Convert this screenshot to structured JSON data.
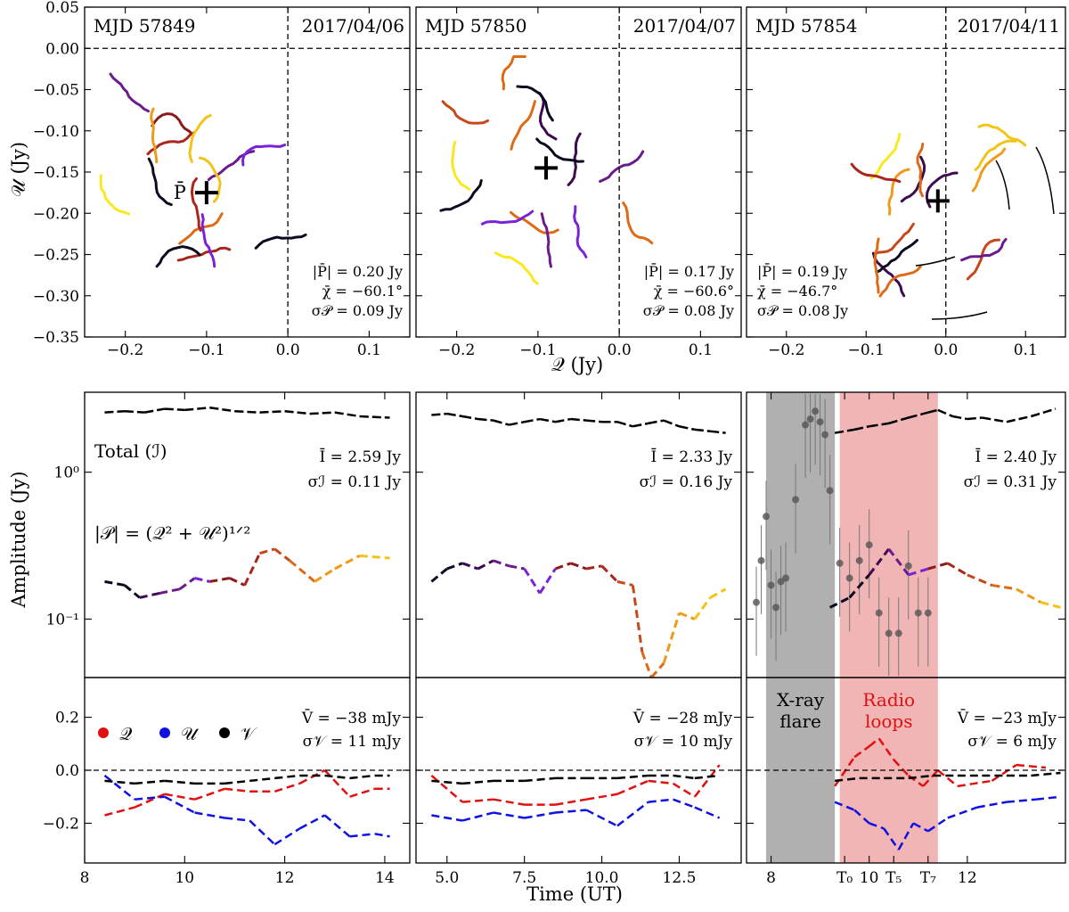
{
  "chart_data": {
    "type": "scatter",
    "colors": {
      "Q": "#e01010",
      "U": "#1010e0",
      "V": "#000000",
      "band_xray": "#b0b0b0",
      "band_radio": "#f2b5b5",
      "radio_text": "#dd1111",
      "track_palette": [
        "#0b0b20",
        "#3d0a4e",
        "#6a1a8c",
        "#7a22d8",
        "#8b1a1a",
        "#a8261c",
        "#c7471a",
        "#dd6a14",
        "#ee9a1a",
        "#f4c318",
        "#fbe81c"
      ]
    },
    "top_panels": [
      {
        "mjd": "MJD 57849",
        "date": "2017/04/06",
        "mean_p_label": "̅P",
        "mean_p": {
          "x": -0.1,
          "y": -0.175
        },
        "stats": [
          "|P̄| = 0.20 Jy",
          "χ̄ = −60.1°",
          "σ𝒫 = 0.09 Jy"
        ],
        "xlim": [
          -0.25,
          0.15
        ],
        "ylim": [
          -0.35,
          0.05
        ],
        "xticks": [
          "−0.2",
          "−0.1",
          "0.0",
          "0.1"
        ]
      },
      {
        "mjd": "MJD 57850",
        "date": "2017/04/07",
        "mean_p": {
          "x": -0.09,
          "y": -0.145
        },
        "stats": [
          "|P̄| = 0.17 Jy",
          "χ̄ = −60.6°",
          "σ𝒫 = 0.08 Jy"
        ],
        "xlim": [
          -0.25,
          0.15
        ],
        "ylim": [
          -0.35,
          0.05
        ],
        "xticks": [
          "−0.2",
          "−0.1",
          "0.0",
          "0.1"
        ]
      },
      {
        "mjd": "MJD 57854",
        "date": "2017/04/11",
        "mean_p": {
          "x": -0.01,
          "y": -0.185
        },
        "stats": [
          "|P̄| = 0.19 Jy",
          "χ̄ = −46.7°",
          "σ𝒫 = 0.08 Jy"
        ],
        "xlim": [
          -0.25,
          0.15
        ],
        "ylim": [
          -0.35,
          0.05
        ],
        "xticks": [
          "−0.2",
          "−0.1",
          "0.0",
          "0.1"
        ]
      }
    ],
    "top_yticks": [
      "0.05",
      "0.00",
      "−0.05",
      "−0.10",
      "−0.15",
      "−0.20",
      "−0.25",
      "−0.30",
      "−0.35"
    ],
    "top_ylabel": "𝒰 (Jy)",
    "top_xlabel": "𝒬 (Jy)",
    "mid_ylabel": "Amplitude (Jy)",
    "mid_yticks": [
      "10⁰",
      "10⁻¹"
    ],
    "mid_series_labels": [
      "Total (ℐ)",
      "|𝒫| = (𝒬² + 𝒰²)¹ᐟ²"
    ],
    "mid_stats": [
      [
        "Ī = 2.59 Jy",
        "σℐ = 0.11 Jy"
      ],
      [
        "Ī = 2.33 Jy",
        "σℐ = 0.16 Jy"
      ],
      [
        "Ī = 2.40 Jy",
        "σℐ = 0.31 Jy"
      ]
    ],
    "bottom_stats": [
      [
        "V̄ = −38 mJy",
        "σ𝒱 = 11 mJy"
      ],
      [
        "V̄ = −28 mJy",
        "σ𝒱 = 10 mJy"
      ],
      [
        "V̄ = −23 mJy",
        "σ𝒱 = 6 mJy"
      ]
    ],
    "bottom_yticks": [
      "0.2",
      "0.0",
      "−0.2"
    ],
    "bottom_legend": [
      "𝒬",
      "𝒰",
      "𝒱"
    ],
    "xlabel": "Time (UT)",
    "time_panels": [
      {
        "xlim": [
          8,
          14.5
        ],
        "xticks": [
          "8",
          "10",
          "12",
          "14"
        ],
        "xtick_vals": [
          8,
          10,
          12,
          14
        ]
      },
      {
        "xlim": [
          4.0,
          14.5
        ],
        "xticks": [
          "5.0",
          "7.5",
          "10.0",
          "12.5"
        ],
        "xtick_vals": [
          5,
          7.5,
          10,
          12.5
        ]
      },
      {
        "xlim": [
          7.5,
          14.0
        ],
        "xticks": [
          "8",
          "T₀",
          "10",
          "T₅",
          "T₇",
          "12"
        ],
        "xtick_vals": [
          8,
          9.5,
          10,
          10.5,
          11.2,
          12
        ]
      }
    ],
    "bands": {
      "xray_label": [
        "X-ray",
        "flare"
      ],
      "radio_label": [
        "Radio",
        "loops"
      ],
      "xray_range": [
        7.9,
        9.3
      ],
      "radio_range": [
        9.4,
        11.4
      ]
    },
    "total_I": [
      [
        [
          8.4,
          2.55
        ],
        [
          8.8,
          2.6
        ],
        [
          9.2,
          2.55
        ],
        [
          9.6,
          2.7
        ],
        [
          10.0,
          2.65
        ],
        [
          10.5,
          2.75
        ],
        [
          11.0,
          2.6
        ],
        [
          11.5,
          2.55
        ],
        [
          12.0,
          2.6
        ],
        [
          12.5,
          2.5
        ],
        [
          13.0,
          2.55
        ],
        [
          13.5,
          2.4
        ],
        [
          14.1,
          2.35
        ]
      ],
      [
        [
          4.5,
          2.45
        ],
        [
          5.0,
          2.5
        ],
        [
          5.5,
          2.4
        ],
        [
          6.0,
          2.3
        ],
        [
          6.5,
          2.25
        ],
        [
          7.0,
          2.1
        ],
        [
          7.5,
          2.2
        ],
        [
          8.0,
          2.3
        ],
        [
          8.5,
          2.2
        ],
        [
          9.0,
          2.3
        ],
        [
          9.5,
          2.25
        ],
        [
          10.0,
          2.2
        ],
        [
          10.5,
          2.2
        ],
        [
          11.0,
          2.05
        ],
        [
          11.5,
          2.15
        ],
        [
          12.0,
          2.25
        ],
        [
          12.5,
          2.05
        ],
        [
          13.0,
          1.95
        ],
        [
          13.5,
          1.9
        ],
        [
          14.0,
          1.85
        ]
      ],
      [
        [
          9.3,
          1.85
        ],
        [
          9.7,
          1.95
        ],
        [
          10.0,
          2.05
        ],
        [
          10.4,
          2.15
        ],
        [
          10.8,
          2.35
        ],
        [
          11.2,
          2.55
        ],
        [
          11.4,
          2.65
        ],
        [
          11.7,
          2.4
        ],
        [
          12.0,
          2.3
        ],
        [
          12.3,
          2.35
        ],
        [
          12.8,
          2.2
        ],
        [
          13.3,
          2.4
        ],
        [
          13.8,
          2.7
        ]
      ]
    ],
    "P_amp": [
      [
        [
          8.4,
          0.18
        ],
        [
          8.8,
          0.17
        ],
        [
          9.1,
          0.14
        ],
        [
          9.5,
          0.15
        ],
        [
          9.9,
          0.16
        ],
        [
          10.2,
          0.19
        ],
        [
          10.5,
          0.18
        ],
        [
          10.9,
          0.19
        ],
        [
          11.2,
          0.17
        ],
        [
          11.5,
          0.28
        ],
        [
          11.8,
          0.3
        ],
        [
          12.1,
          0.25
        ],
        [
          12.6,
          0.18
        ],
        [
          13.0,
          0.22
        ],
        [
          13.5,
          0.27
        ],
        [
          14.1,
          0.26
        ]
      ],
      [
        [
          4.5,
          0.18
        ],
        [
          5.0,
          0.22
        ],
        [
          5.5,
          0.24
        ],
        [
          6.0,
          0.22
        ],
        [
          6.5,
          0.25
        ],
        [
          7.0,
          0.23
        ],
        [
          7.5,
          0.22
        ],
        [
          8.0,
          0.15
        ],
        [
          8.5,
          0.22
        ],
        [
          9.0,
          0.24
        ],
        [
          9.5,
          0.22
        ],
        [
          10.0,
          0.23
        ],
        [
          10.5,
          0.18
        ],
        [
          11.0,
          0.17
        ],
        [
          11.3,
          0.06
        ],
        [
          11.6,
          0.04
        ],
        [
          12.0,
          0.05
        ],
        [
          12.5,
          0.11
        ],
        [
          13.0,
          0.1
        ],
        [
          13.5,
          0.14
        ],
        [
          14.0,
          0.16
        ]
      ],
      [
        [
          9.2,
          0.12
        ],
        [
          9.6,
          0.14
        ],
        [
          10.0,
          0.2
        ],
        [
          10.4,
          0.3
        ],
        [
          10.8,
          0.2
        ],
        [
          11.2,
          0.22
        ],
        [
          11.6,
          0.24
        ],
        [
          12.0,
          0.2
        ],
        [
          12.5,
          0.17
        ],
        [
          13.0,
          0.16
        ],
        [
          13.5,
          0.13
        ],
        [
          13.9,
          0.12
        ]
      ]
    ],
    "xray": [
      [
        7.7,
        0.13
      ],
      [
        7.8,
        0.25
      ],
      [
        7.9,
        0.5
      ],
      [
        8.0,
        0.17
      ],
      [
        8.1,
        0.12
      ],
      [
        8.2,
        0.18
      ],
      [
        8.3,
        0.19
      ],
      [
        8.5,
        0.65
      ],
      [
        8.7,
        2.1
      ],
      [
        8.8,
        2.3
      ],
      [
        8.9,
        2.6
      ],
      [
        9.0,
        2.2
      ],
      [
        9.1,
        1.8
      ],
      [
        9.2,
        0.75
      ],
      [
        9.4,
        0.24
      ],
      [
        9.6,
        0.19
      ],
      [
        9.8,
        0.25
      ],
      [
        10.0,
        0.32
      ],
      [
        10.2,
        0.11
      ],
      [
        10.4,
        0.08
      ],
      [
        10.6,
        0.08
      ],
      [
        10.8,
        0.23
      ],
      [
        11.0,
        0.11
      ],
      [
        11.2,
        0.11
      ]
    ],
    "bottom_series": [
      {
        "Q": [
          [
            8.4,
            -0.17
          ],
          [
            9.0,
            -0.14
          ],
          [
            9.6,
            -0.09
          ],
          [
            10.2,
            -0.11
          ],
          [
            10.8,
            -0.07
          ],
          [
            11.3,
            -0.08
          ],
          [
            11.8,
            -0.08
          ],
          [
            12.3,
            -0.05
          ],
          [
            12.8,
            0.0
          ],
          [
            13.3,
            -0.1
          ],
          [
            13.8,
            -0.07
          ],
          [
            14.1,
            -0.07
          ]
        ],
        "U": [
          [
            8.4,
            -0.02
          ],
          [
            9.0,
            -0.11
          ],
          [
            9.6,
            -0.1
          ],
          [
            10.2,
            -0.16
          ],
          [
            10.8,
            -0.18
          ],
          [
            11.3,
            -0.19
          ],
          [
            11.8,
            -0.28
          ],
          [
            12.3,
            -0.22
          ],
          [
            12.8,
            -0.17
          ],
          [
            13.3,
            -0.25
          ],
          [
            13.8,
            -0.24
          ],
          [
            14.1,
            -0.25
          ]
        ],
        "V": [
          [
            8.4,
            -0.04
          ],
          [
            9.0,
            -0.05
          ],
          [
            9.6,
            -0.04
          ],
          [
            10.2,
            -0.05
          ],
          [
            10.8,
            -0.05
          ],
          [
            11.3,
            -0.04
          ],
          [
            11.8,
            -0.03
          ],
          [
            12.3,
            -0.02
          ],
          [
            12.8,
            -0.02
          ],
          [
            13.3,
            -0.03
          ],
          [
            13.8,
            -0.02
          ],
          [
            14.1,
            -0.02
          ]
        ]
      },
      {
        "Q": [
          [
            4.5,
            -0.02
          ],
          [
            5.5,
            -0.12
          ],
          [
            6.5,
            -0.11
          ],
          [
            7.5,
            -0.13
          ],
          [
            8.5,
            -0.13
          ],
          [
            9.5,
            -0.11
          ],
          [
            10.5,
            -0.09
          ],
          [
            11.5,
            -0.04
          ],
          [
            12.3,
            -0.05
          ],
          [
            13.0,
            -0.1
          ],
          [
            13.8,
            0.02
          ]
        ],
        "U": [
          [
            4.5,
            -0.17
          ],
          [
            5.5,
            -0.19
          ],
          [
            6.5,
            -0.16
          ],
          [
            7.5,
            -0.18
          ],
          [
            8.5,
            -0.16
          ],
          [
            9.5,
            -0.15
          ],
          [
            10.5,
            -0.21
          ],
          [
            11.5,
            -0.12
          ],
          [
            12.3,
            -0.11
          ],
          [
            13.0,
            -0.14
          ],
          [
            13.8,
            -0.18
          ]
        ],
        "V": [
          [
            4.5,
            -0.04
          ],
          [
            5.5,
            -0.05
          ],
          [
            6.5,
            -0.04
          ],
          [
            7.5,
            -0.04
          ],
          [
            8.5,
            -0.03
          ],
          [
            9.5,
            -0.03
          ],
          [
            10.5,
            -0.03
          ],
          [
            11.5,
            -0.02
          ],
          [
            12.3,
            -0.02
          ],
          [
            13.0,
            -0.03
          ],
          [
            13.8,
            -0.02
          ]
        ]
      },
      {
        "Q": [
          [
            9.3,
            -0.06
          ],
          [
            9.7,
            0.05
          ],
          [
            10.0,
            0.09
          ],
          [
            10.2,
            0.12
          ],
          [
            10.5,
            0.04
          ],
          [
            10.8,
            -0.02
          ],
          [
            11.1,
            -0.06
          ],
          [
            11.4,
            0.0
          ],
          [
            11.8,
            -0.06
          ],
          [
            12.5,
            -0.04
          ],
          [
            13.0,
            0.02
          ],
          [
            13.6,
            0.01
          ]
        ],
        "U": [
          [
            9.3,
            -0.12
          ],
          [
            9.7,
            -0.15
          ],
          [
            10.0,
            -0.2
          ],
          [
            10.3,
            -0.22
          ],
          [
            10.6,
            -0.3
          ],
          [
            10.9,
            -0.2
          ],
          [
            11.2,
            -0.23
          ],
          [
            11.6,
            -0.18
          ],
          [
            12.2,
            -0.14
          ],
          [
            12.8,
            -0.12
          ],
          [
            13.4,
            -0.11
          ],
          [
            13.9,
            -0.1
          ]
        ],
        "V": [
          [
            9.3,
            -0.04
          ],
          [
            9.8,
            -0.03
          ],
          [
            10.3,
            -0.03
          ],
          [
            10.8,
            -0.03
          ],
          [
            11.3,
            -0.02
          ],
          [
            11.8,
            -0.02
          ],
          [
            12.3,
            -0.02
          ],
          [
            12.8,
            -0.02
          ],
          [
            13.3,
            -0.02
          ],
          [
            13.9,
            -0.01
          ]
        ]
      }
    ],
    "bottom_ylim": [
      -0.35,
      0.35
    ],
    "mid_ylim_log": [
      0.04,
      3.5
    ]
  }
}
